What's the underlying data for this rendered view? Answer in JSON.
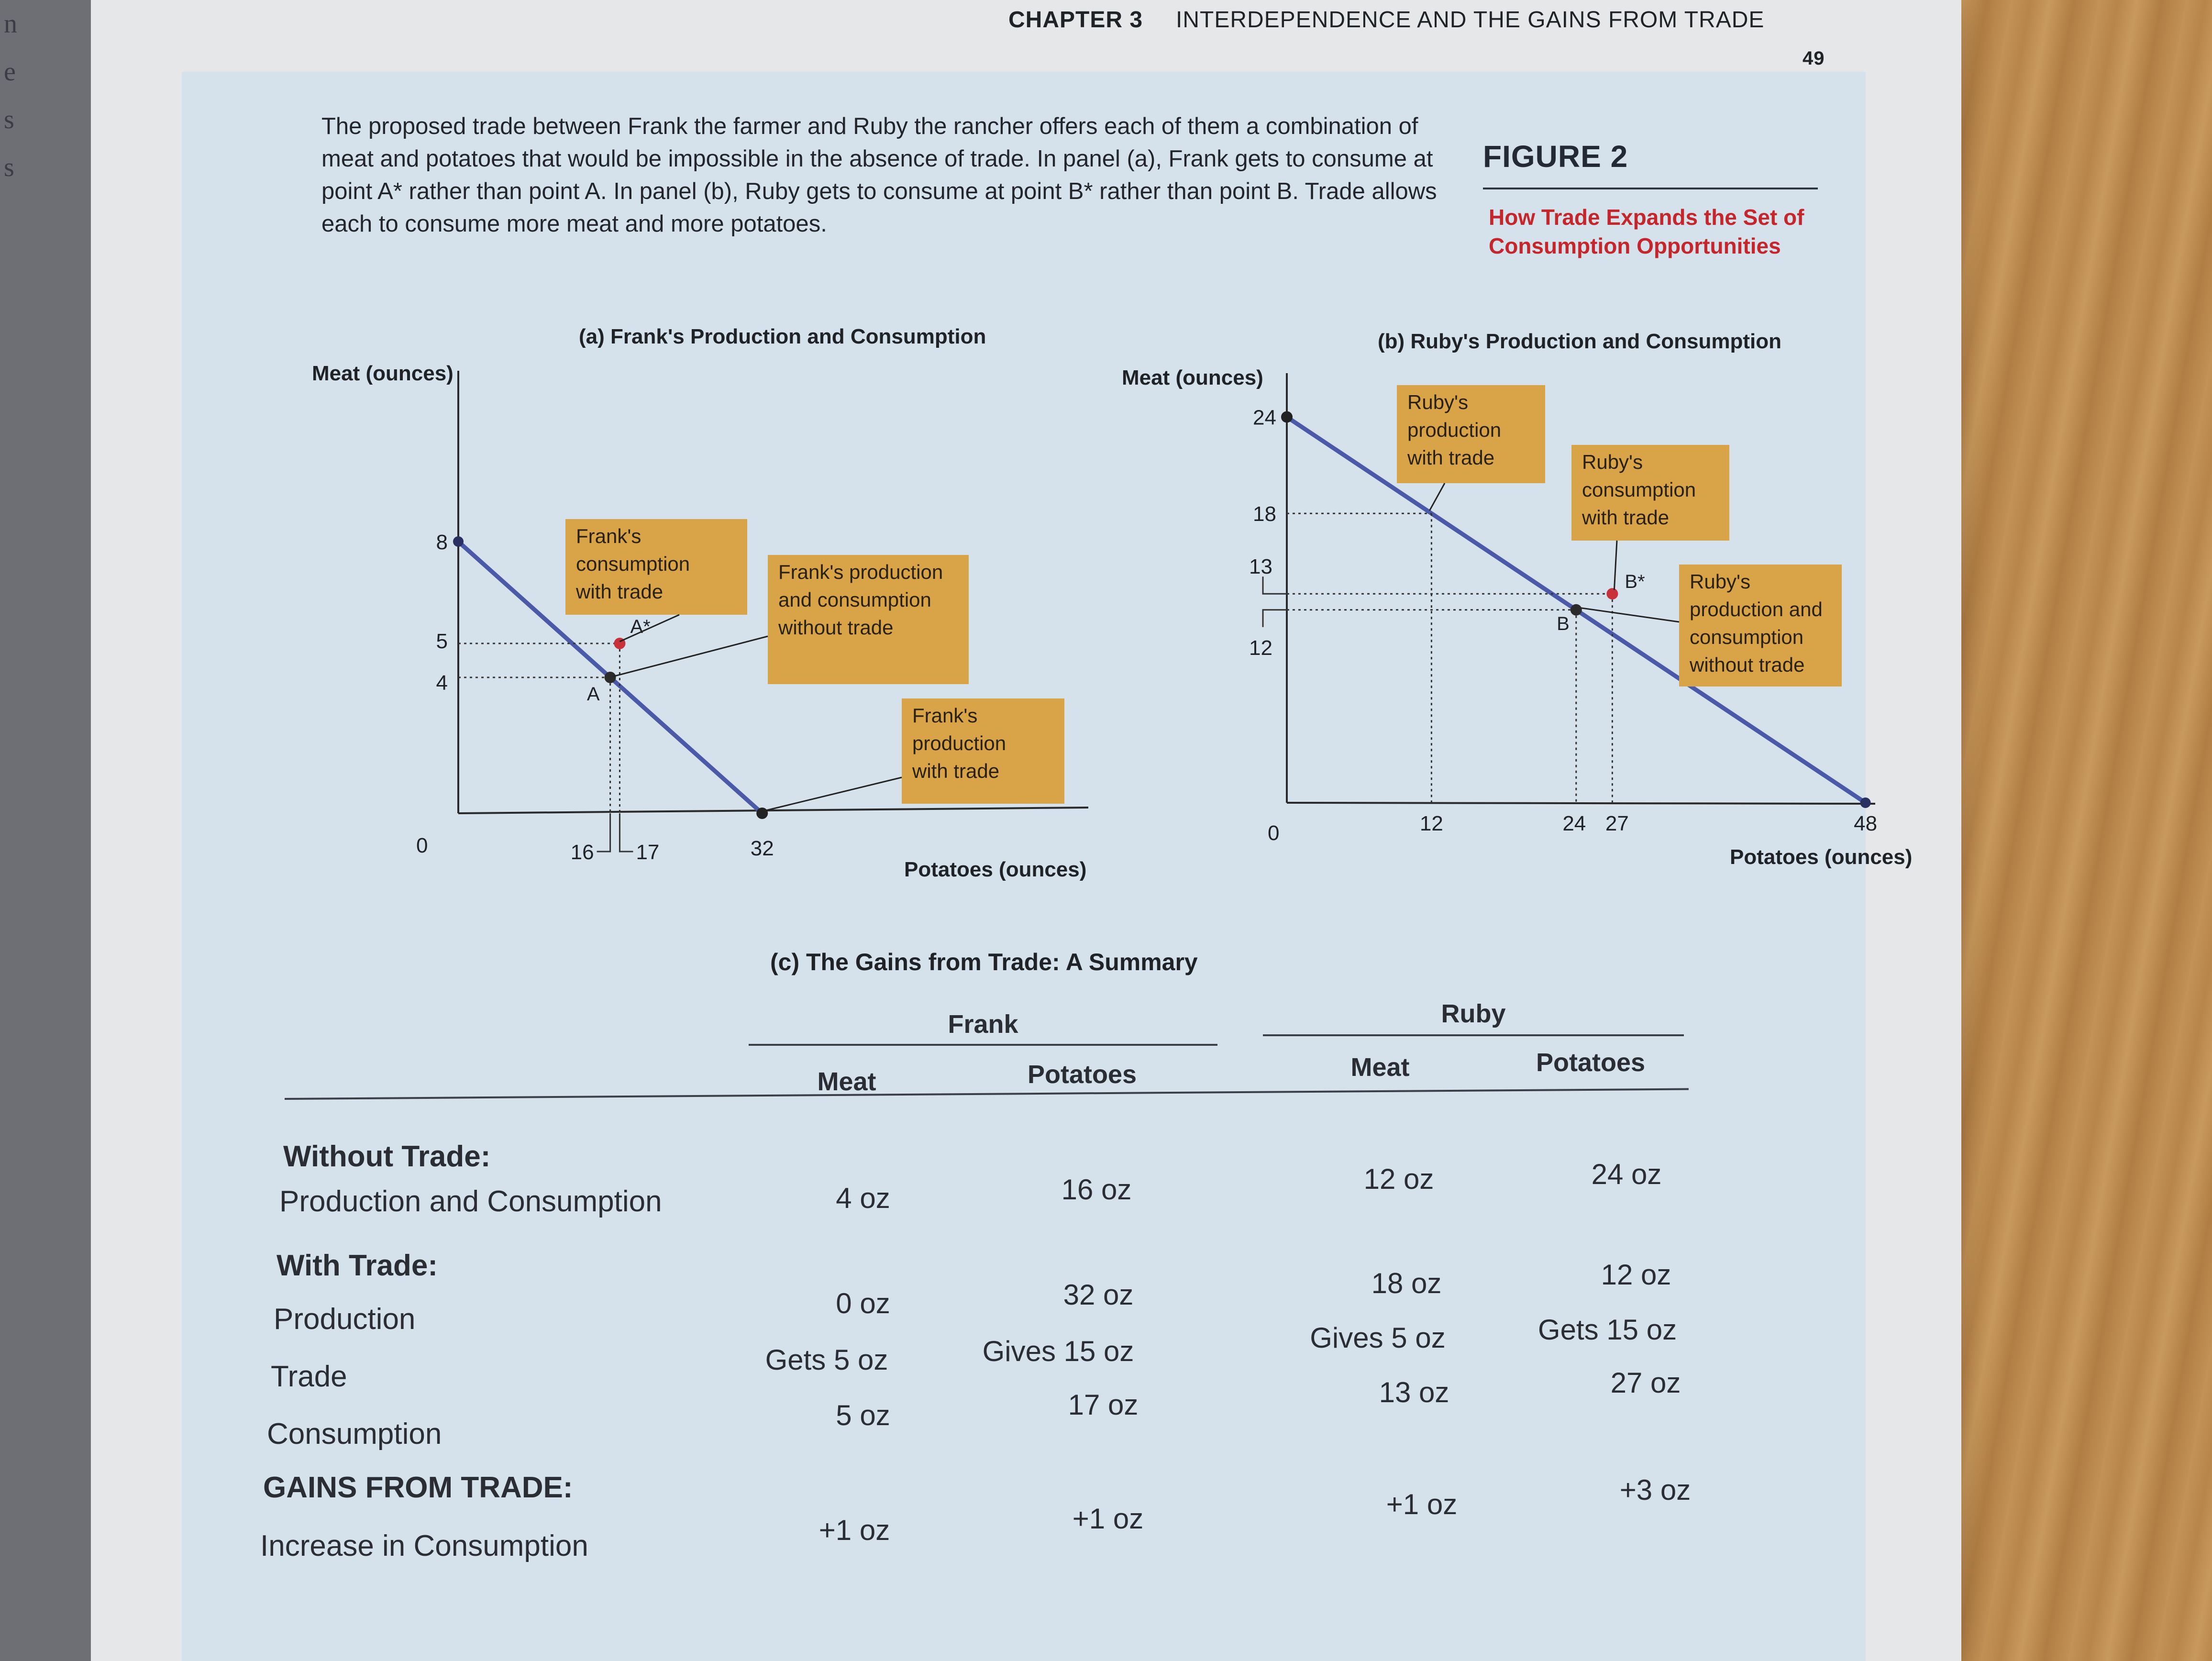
{
  "header": {
    "chapter_label": "CHAPTER 3",
    "chapter_title": "INTERDEPENDENCE AND THE GAINS FROM TRADE",
    "page_number": "49"
  },
  "caption": "The proposed trade between Frank the farmer and Ruby the rancher offers each of them a combination of meat and potatoes that would be impossible in the absence of trade. In panel (a), Frank gets to consume at point A* rather than point A. In panel (b), Ruby gets to consume at point B* rather than point B. Trade allows each to consume more meat and more potatoes.",
  "figure": {
    "label": "FIGURE 2",
    "title": "How Trade Expands the Set of Consumption Opportunities"
  },
  "chart_data": [
    {
      "type": "line",
      "title": "(a) Frank's Production and Consumption",
      "xlabel": "Potatoes (ounces)",
      "ylabel": "Meat (ounces)",
      "origin_label": "0",
      "x_ticks": [
        16,
        17,
        32
      ],
      "y_ticks": [
        4,
        5,
        8
      ],
      "tick_labels": {
        "x16": "16",
        "x17": "17",
        "x32": "32",
        "y4": "4",
        "y5": "5",
        "y8": "8"
      },
      "xlim": [
        0,
        48
      ],
      "ylim": [
        0,
        12
      ],
      "series": [
        {
          "points": [
            {
              "x": 0,
              "y": 8
            },
            {
              "x": 32,
              "y": 0
            }
          ],
          "color": "#4a5aa8"
        }
      ],
      "points": [
        {
          "label": "A",
          "x": 16,
          "y": 4,
          "color": "#2b2b2b"
        },
        {
          "label": "A*",
          "x": 17,
          "y": 5,
          "color": "#c8313a"
        }
      ],
      "annotations": [
        {
          "text": [
            "Frank's",
            "consumption",
            "with trade"
          ]
        },
        {
          "text": [
            "Frank's production",
            "and consumption",
            "without trade"
          ]
        },
        {
          "text": [
            "Frank's",
            "production",
            "with trade"
          ]
        }
      ]
    },
    {
      "type": "line",
      "title": "(b) Ruby's Production and Consumption",
      "xlabel": "Potatoes (ounces)",
      "ylabel": "Meat (ounces)",
      "origin_label": "0",
      "x_ticks": [
        12,
        24,
        27,
        48
      ],
      "y_ticks": [
        12,
        13,
        18,
        24
      ],
      "tick_labels": {
        "x12": "12",
        "x24": "24",
        "x27": "27",
        "x48": "48",
        "y12": "12",
        "y13": "13",
        "y18": "18",
        "y24": "24"
      },
      "xlim": [
        0,
        48
      ],
      "ylim": [
        0,
        24
      ],
      "series": [
        {
          "points": [
            {
              "x": 0,
              "y": 24
            },
            {
              "x": 48,
              "y": 0
            }
          ],
          "color": "#4a5aa8"
        }
      ],
      "points": [
        {
          "label": "B",
          "x": 24,
          "y": 12,
          "color": "#2b2b2b"
        },
        {
          "label": "B*",
          "x": 27,
          "y": 13,
          "color": "#c8313a"
        }
      ],
      "annotations": [
        {
          "text": [
            "Ruby's",
            "production",
            "with trade"
          ]
        },
        {
          "text": [
            "Ruby's",
            "consumption",
            "with trade"
          ]
        },
        {
          "text": [
            "Ruby's",
            "production and",
            "consumption",
            "without trade"
          ]
        }
      ]
    }
  ],
  "summary": {
    "title": "(c) The Gains from Trade: A Summary",
    "frank": "Frank",
    "ruby": "Ruby",
    "cols": [
      "Meat",
      "Potatoes",
      "Meat",
      "Potatoes"
    ],
    "without_trade": "Without Trade:",
    "with_trade": "With Trade:",
    "gains": "GAINS FROM TRADE:",
    "rows": [
      {
        "label": "Production and Consumption",
        "values": [
          "4 oz",
          "16 oz",
          "12 oz",
          "24 oz"
        ]
      },
      {
        "label": "Production",
        "values": [
          "0 oz",
          "32 oz",
          "18 oz",
          "12 oz"
        ]
      },
      {
        "label": "Trade",
        "values": [
          "Gets 5 oz",
          "Gives 15 oz",
          "Gives 5 oz",
          "Gets 15 oz"
        ]
      },
      {
        "label": "Consumption",
        "values": [
          "5 oz",
          "17 oz",
          "13 oz",
          "27 oz"
        ]
      },
      {
        "label": "Increase in Consumption",
        "values": [
          "+1 oz",
          "+1 oz",
          "+1 oz",
          "+3 oz"
        ]
      }
    ]
  },
  "colors": {
    "panel": "#d5e1eb",
    "note_box": "#d9a348",
    "frontier": "#4a5aa8",
    "after_point": "#c8313a",
    "figure_title": "#c4262b"
  }
}
